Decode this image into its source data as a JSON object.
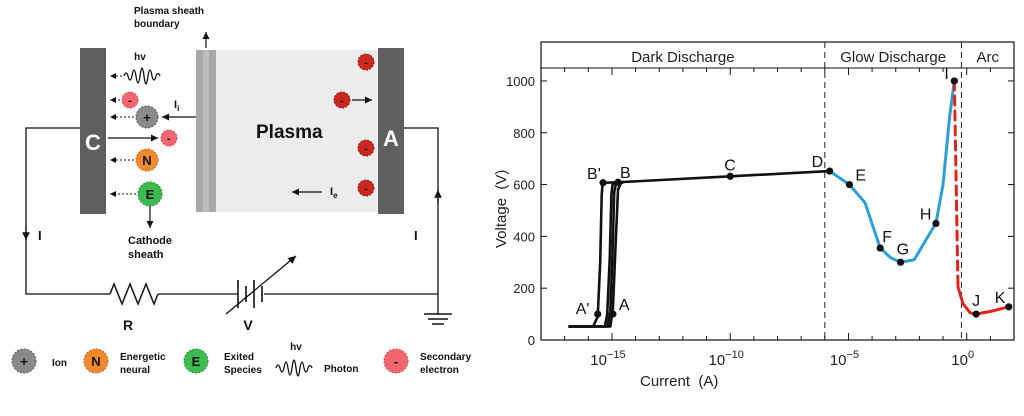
{
  "schematic": {
    "sheath_boundary_label": [
      "Plasma sheath",
      "boundary"
    ],
    "cathode_letter": "C",
    "anode_letter": "A",
    "plasma_label": "Plasma",
    "photon_symbol": "hv",
    "ion_current_label": "I",
    "ion_current_sub": "i",
    "electron_current_label": "I",
    "electron_current_sub": "e",
    "circuit_current_left": "I",
    "circuit_current_right": "I",
    "cathode_sheath_label": [
      "Cathode",
      "sheath"
    ],
    "resistor_label": "R",
    "source_label": "V",
    "ion_symbol": "+",
    "neutral_symbol": "N",
    "excited_symbol": "E",
    "electron_symbol": "-",
    "colors": {
      "electrode": "#5f5f5f",
      "sheath": "#a9a9a9",
      "plasma": "#ececec",
      "ion": "#8a8a8a",
      "neutral": "#f08a2c",
      "excited": "#3dbb4e",
      "secondary_electron": "#f2676e",
      "anode_electron": "#c8281e"
    }
  },
  "legend": [
    {
      "icon": "ion",
      "symbol": "+",
      "lines": [
        "Ion"
      ]
    },
    {
      "icon": "neutral",
      "symbol": "N",
      "lines": [
        "Energetic",
        "neural"
      ]
    },
    {
      "icon": "excited",
      "symbol": "E",
      "lines": [
        "Exited",
        "Species"
      ]
    },
    {
      "icon": "photon",
      "symbol": "hv",
      "lines": [
        "Photon"
      ]
    },
    {
      "icon": "electron",
      "symbol": "-",
      "lines": [
        "Secondary",
        "electron"
      ]
    }
  ],
  "chart_data": {
    "type": "line",
    "xlabel": "Current  (A)",
    "ylabel": "Voltage  (V)",
    "x_scale": "log",
    "xlim": [
      1e-18,
      100.0
    ],
    "ylim": [
      0,
      1050
    ],
    "x_ticks": [
      {
        "value": 1e-15,
        "base": "10",
        "exp": "−15"
      },
      {
        "value": 1e-10,
        "base": "10",
        "exp": "−10"
      },
      {
        "value": 1e-05,
        "base": "10",
        "exp": "−5"
      },
      {
        "value": 1.0,
        "base": "10",
        "exp": "0"
      }
    ],
    "y_ticks": [
      0,
      200,
      400,
      600,
      800,
      1000
    ],
    "regions": [
      {
        "label": "Dark Discharge",
        "from": 1e-18,
        "to": 1e-06
      },
      {
        "label": "Glow Discharge",
        "from": 1e-06,
        "to": 0.6
      },
      {
        "label": "Arc",
        "from": 0.6,
        "to": 100.0
      }
    ],
    "region_boundaries": [
      1e-06,
      0.6
    ],
    "colors": {
      "dark": "#111111",
      "glow": "#2b9fd9",
      "arc": "#e0261c"
    },
    "series": [
      {
        "segment": "dark",
        "style": "solid",
        "x": [
          1.6e-17,
          1.6e-16,
          2.5e-16,
          3.2e-16,
          3.7e-16,
          4e-16,
          4.2e-16
        ],
        "y": [
          52,
          52,
          90,
          300,
          560,
          600,
          607
        ]
      },
      {
        "segment": "dark",
        "style": "solid",
        "x": [
          1.6e-17,
          5e-16,
          6.3e-16,
          8e-16,
          9.5e-16,
          1.05e-15,
          1.3e-15
        ],
        "y": [
          52,
          52,
          100,
          310,
          560,
          600,
          607
        ]
      },
      {
        "segment": "dark",
        "style": "solid",
        "x": [
          1.6e-17,
          6.5e-16,
          8.5e-16,
          1.05e-15,
          1.25e-15,
          1.45e-15,
          1.8e-15
        ],
        "y": [
          52,
          52,
          110,
          330,
          570,
          600,
          609
        ]
      },
      {
        "segment": "dark",
        "style": "solid",
        "x": [
          1.6e-17,
          8.5e-16,
          1.1e-15,
          1.4e-15,
          1.8e-15,
          2.3e-15,
          3e-15
        ],
        "y": [
          52,
          52,
          120,
          350,
          580,
          603,
          610
        ]
      },
      {
        "segment": "dark",
        "style": "solid",
        "x": [
          4.2e-16,
          3e-15,
          1e-10,
          1.6e-06
        ],
        "y": [
          607,
          610,
          632,
          652
        ]
      },
      {
        "segment": "glow",
        "style": "solid",
        "x": [
          1.6e-06,
          1.1e-05,
          5e-05,
          0.00022,
          0.0006,
          0.0016,
          0.006,
          0.02,
          0.05,
          0.1,
          0.19,
          0.3
        ],
        "y": [
          652,
          600,
          530,
          355,
          318,
          300,
          310,
          390,
          450,
          600,
          860,
          1000
        ]
      },
      {
        "segment": "arc",
        "style": "dashed",
        "x": [
          0.3,
          0.36,
          0.43
        ],
        "y": [
          1000,
          600,
          205
        ]
      },
      {
        "segment": "arc",
        "style": "solid",
        "x": [
          0.43,
          0.7,
          1.4,
          2.5,
          12,
          60
        ],
        "y": [
          205,
          140,
          105,
          100,
          112,
          128
        ]
      }
    ],
    "points": [
      {
        "label": "A'",
        "x": 2.5e-16,
        "y": 100,
        "label_dx": -22,
        "label_dy": 0
      },
      {
        "label": "A",
        "x": 1.1e-15,
        "y": 100,
        "label_dx": 6,
        "label_dy": -4
      },
      {
        "label": "B'",
        "x": 4.2e-16,
        "y": 607,
        "label_dx": -16,
        "label_dy": -4
      },
      {
        "label": "B",
        "x": 1.8e-15,
        "y": 609,
        "label_dx": 2,
        "label_dy": -4
      },
      {
        "label": "C",
        "x": 1e-10,
        "y": 632,
        "label_dx": -6,
        "label_dy": -6
      },
      {
        "label": "D",
        "x": 1.6e-06,
        "y": 652,
        "label_dx": -18,
        "label_dy": -4
      },
      {
        "label": "E",
        "x": 1.1e-05,
        "y": 600,
        "label_dx": 6,
        "label_dy": -4
      },
      {
        "label": "F",
        "x": 0.00022,
        "y": 355,
        "label_dx": 2,
        "label_dy": -6
      },
      {
        "label": "G",
        "x": 0.0016,
        "y": 300,
        "label_dx": -4,
        "label_dy": -8
      },
      {
        "label": "H",
        "x": 0.05,
        "y": 450,
        "label_dx": -16,
        "label_dy": -4
      },
      {
        "label": "I",
        "x": 0.3,
        "y": 1000,
        "label_dx": -10,
        "label_dy": -2
      },
      {
        "label": "J",
        "x": 2.5,
        "y": 100,
        "label_dx": -4,
        "label_dy": -8
      },
      {
        "label": "K",
        "x": 60,
        "y": 128,
        "label_dx": -14,
        "label_dy": -4
      }
    ]
  }
}
